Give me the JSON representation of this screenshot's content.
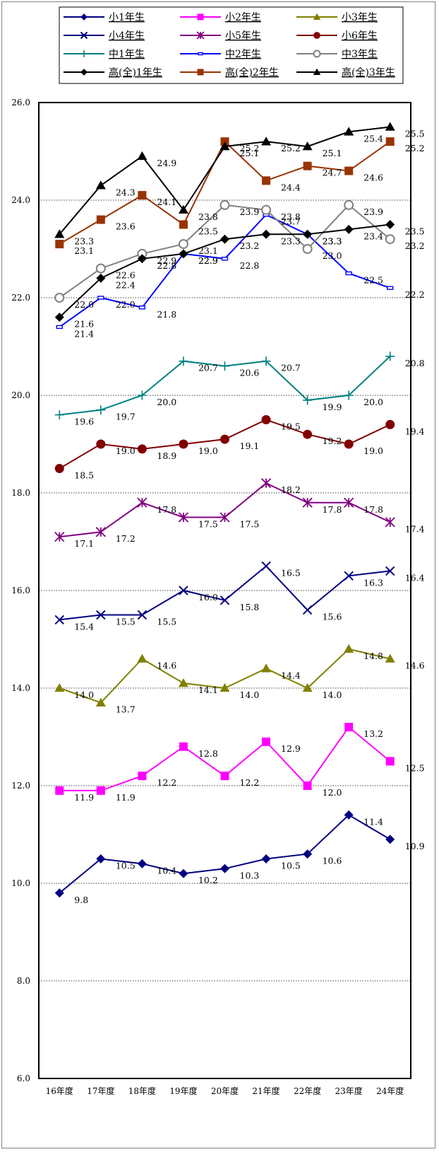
{
  "chart_data": {
    "type": "line",
    "title": "",
    "xlabel": "",
    "ylabel": "",
    "ylim": [
      6.0,
      26.0
    ],
    "ytick_step": 2.0,
    "grid": "horizontal-dotted",
    "legend_position": "top",
    "categories": [
      "16年度",
      "17年度",
      "18年度",
      "19年度",
      "20年度",
      "21年度",
      "22年度",
      "23年度",
      "24年度"
    ],
    "series": [
      {
        "name": "小1年生",
        "color": "#000080",
        "marker": "diamond",
        "values": [
          9.8,
          10.5,
          10.4,
          10.2,
          10.3,
          10.5,
          10.6,
          11.4,
          10.9
        ]
      },
      {
        "name": "小2年生",
        "color": "#ff00ff",
        "marker": "square",
        "values": [
          11.9,
          11.9,
          12.2,
          12.8,
          12.2,
          12.9,
          12.0,
          13.2,
          12.5
        ]
      },
      {
        "name": "小3年生",
        "color": "#808000",
        "marker": "triangle",
        "values": [
          14.0,
          13.7,
          14.6,
          14.1,
          14.0,
          14.4,
          14.0,
          14.8,
          14.6
        ]
      },
      {
        "name": "小4年生",
        "color": "#000080",
        "marker": "x",
        "values": [
          15.4,
          15.5,
          15.5,
          16.0,
          15.8,
          16.5,
          15.6,
          16.3,
          16.4
        ]
      },
      {
        "name": "小5年生",
        "color": "#800080",
        "marker": "star",
        "values": [
          17.1,
          17.2,
          17.8,
          17.5,
          17.5,
          18.2,
          17.8,
          17.8,
          17.4
        ]
      },
      {
        "name": "小6年生",
        "color": "#800000",
        "marker": "circle",
        "values": [
          18.5,
          19.0,
          18.9,
          19.0,
          19.1,
          19.5,
          19.2,
          19.0,
          19.4
        ]
      },
      {
        "name": "中1年生",
        "color": "#008080",
        "marker": "plus",
        "values": [
          19.6,
          19.7,
          20.0,
          20.7,
          20.6,
          20.7,
          19.9,
          20.0,
          20.8
        ]
      },
      {
        "name": "中2年生",
        "color": "#0000ff",
        "marker": "dash",
        "values": [
          21.4,
          22.0,
          21.8,
          22.9,
          22.8,
          23.7,
          23.3,
          22.5,
          22.2
        ]
      },
      {
        "name": "中3年生",
        "color": "#808080",
        "marker": "ocircle",
        "values": [
          22.0,
          22.6,
          22.9,
          23.1,
          23.9,
          23.8,
          23.0,
          23.9,
          23.2
        ]
      },
      {
        "name": "高(全)1年生",
        "color": "#000000",
        "marker": "diamond",
        "values": [
          21.6,
          22.4,
          22.8,
          22.9,
          23.2,
          23.3,
          23.3,
          23.4,
          23.5
        ]
      },
      {
        "name": "高(全)2年生",
        "color": "#993300",
        "marker": "square",
        "values": [
          23.1,
          23.6,
          24.1,
          23.5,
          25.2,
          24.4,
          24.7,
          24.6,
          25.2
        ]
      },
      {
        "name": "高(全)3年生",
        "color": "#000000",
        "marker": "triangle",
        "values": [
          23.3,
          24.3,
          24.9,
          23.8,
          25.1,
          25.2,
          25.1,
          25.4,
          25.5
        ]
      }
    ]
  }
}
